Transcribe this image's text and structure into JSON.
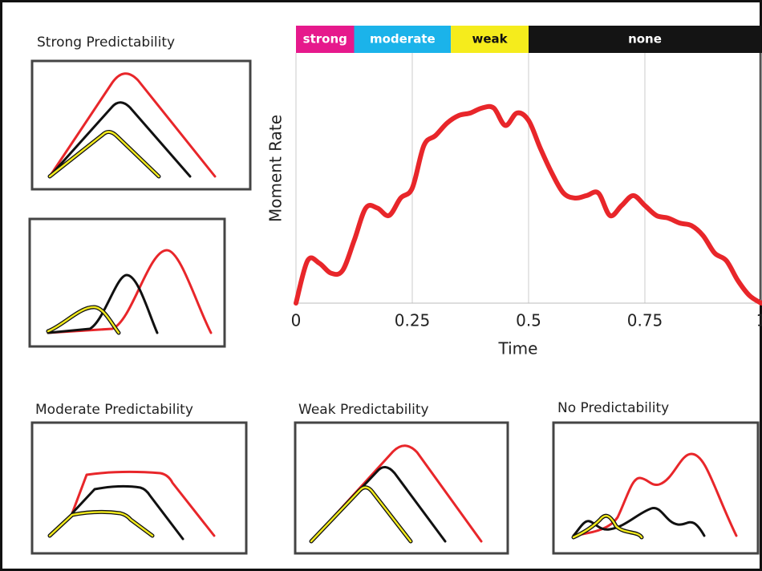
{
  "chart_data": {
    "type": "line",
    "x_label": "Time",
    "y_label": "Moment Rate",
    "x": [
      0,
      0.025,
      0.05,
      0.075,
      0.1,
      0.125,
      0.15,
      0.175,
      0.2,
      0.225,
      0.25,
      0.275,
      0.3,
      0.325,
      0.35,
      0.375,
      0.4,
      0.425,
      0.45,
      0.475,
      0.5,
      0.525,
      0.55,
      0.575,
      0.6,
      0.625,
      0.65,
      0.675,
      0.7,
      0.725,
      0.75,
      0.775,
      0.8,
      0.825,
      0.85,
      0.875,
      0.9,
      0.925,
      0.95,
      0.975,
      1
    ],
    "series": [
      {
        "color": "#e8262a",
        "values": [
          0,
          0.17,
          0.16,
          0.12,
          0.13,
          0.25,
          0.38,
          0.38,
          0.35,
          0.42,
          0.46,
          0.63,
          0.67,
          0.72,
          0.75,
          0.76,
          0.78,
          0.78,
          0.71,
          0.76,
          0.73,
          0.62,
          0.52,
          0.44,
          0.42,
          0.43,
          0.44,
          0.35,
          0.39,
          0.43,
          0.39,
          0.35,
          0.34,
          0.32,
          0.31,
          0.27,
          0.2,
          0.17,
          0.09,
          0.03,
          0
        ]
      }
    ],
    "xlim": [
      0,
      1
    ],
    "xticks": [
      0,
      0.25,
      0.5,
      0.75,
      1
    ],
    "ylim": [
      0,
      1
    ],
    "grid": true,
    "bands": [
      {
        "label": "strong",
        "start": 0,
        "end": 0.125,
        "color": "#e6198c",
        "text_color": "#ffffff"
      },
      {
        "label": "moderate",
        "start": 0.125,
        "end": 0.333,
        "color": "#1bb3ea",
        "text_color": "#ffffff"
      },
      {
        "label": "weak",
        "start": 0.333,
        "end": 0.5,
        "color": "#f5ec1c",
        "text_color": "#111111"
      },
      {
        "label": "none",
        "start": 0.5,
        "end": 1,
        "color": "#141414",
        "text_color": "#ffffff"
      }
    ]
  },
  "panels": [
    {
      "title": "Strong Predictability"
    },
    {
      "title": "Moderate Predictability"
    },
    {
      "title": "Weak Predictability"
    },
    {
      "title": "No Predictability"
    }
  ]
}
